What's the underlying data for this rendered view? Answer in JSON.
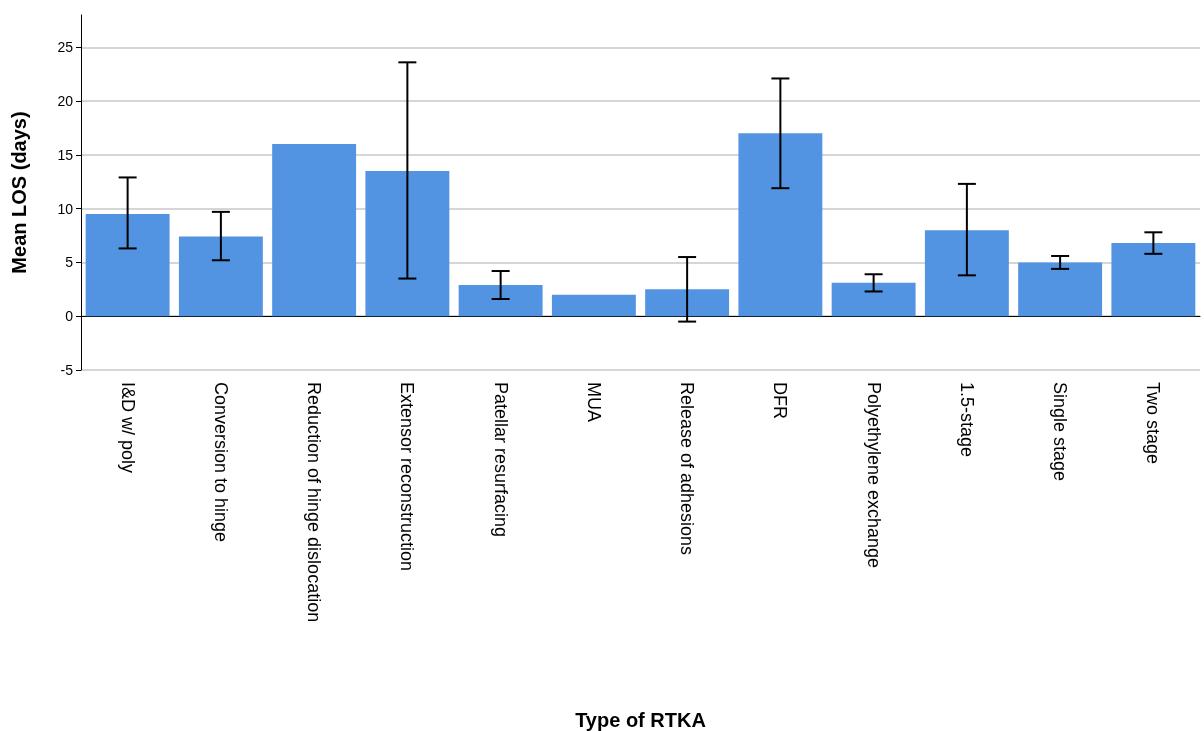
{
  "chart_data": {
    "type": "bar",
    "xlabel": "Type of RTKA",
    "ylabel": "Mean LOS (days)",
    "categories": [
      "I&D w/ poly",
      "Conversion to hinge",
      "Reduction of hinge dislocation",
      "Extensor reconstruction",
      "Patellar resurfacing",
      "MUA",
      "Release of adhesions",
      "DFR",
      "Polyethylene exchange",
      "1.5-stage",
      "Single stage",
      "Two stage"
    ],
    "values": [
      9.5,
      7.4,
      16.0,
      13.5,
      2.9,
      2.0,
      2.5,
      17.0,
      3.1,
      8.0,
      5.0,
      6.8
    ],
    "errors": [
      [
        6.3,
        12.9
      ],
      [
        5.2,
        9.7
      ],
      null,
      [
        3.5,
        23.6
      ],
      [
        1.6,
        4.2
      ],
      null,
      [
        -0.5,
        5.5
      ],
      [
        11.9,
        22.1
      ],
      [
        2.3,
        3.9
      ],
      [
        3.8,
        12.3
      ],
      [
        4.4,
        5.6
      ],
      [
        5.8,
        7.8
      ]
    ],
    "color": "#5294e2",
    "ylim": [
      -5,
      28
    ],
    "yticks": [
      -5,
      0,
      5,
      10,
      15,
      20,
      25
    ],
    "grid": "y"
  }
}
